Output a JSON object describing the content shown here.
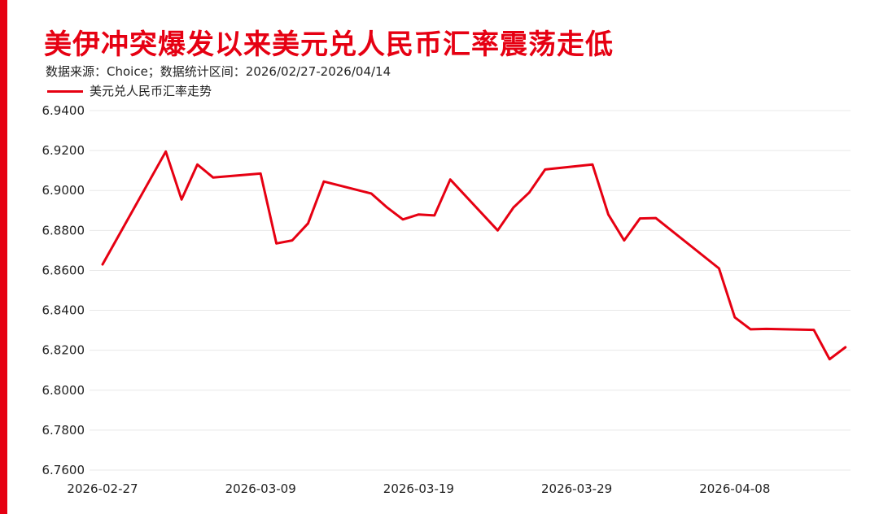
{
  "header": {
    "title": "美伊冲突爆发以来美元兑人民币汇率震荡走低",
    "subtitle": "数据来源：Choice；数据统计区间：2026/02/27-2026/04/14"
  },
  "colors": {
    "accent": "#e60012",
    "line": "#e60012",
    "grid": "#e8e8e8",
    "text": "#222222"
  },
  "chart_data": {
    "type": "line",
    "title": "美伊冲突爆发以来美元兑人民币汇率震荡走低",
    "subtitle": "数据来源：Choice；数据统计区间：2026/02/27-2026/04/14",
    "xlabel": "",
    "ylabel": "",
    "ylim": [
      6.76,
      6.94
    ],
    "y_ticks": [
      "6.9400",
      "6.9200",
      "6.9000",
      "6.8800",
      "6.8600",
      "6.8400",
      "6.8200",
      "6.8000",
      "6.7800",
      "6.7600"
    ],
    "y_tick_values": [
      6.94,
      6.92,
      6.9,
      6.88,
      6.86,
      6.84,
      6.82,
      6.8,
      6.78,
      6.76
    ],
    "x_range": [
      "2026-02-27",
      "2026-04-14"
    ],
    "x_ticks": [
      "2026-02-27",
      "2026-03-09",
      "2026-03-19",
      "2026-03-29",
      "2026-04-08"
    ],
    "grid": "horizontal",
    "legend": "top-left",
    "series": [
      {
        "name": "美元兑人民币汇率走势",
        "color": "#e60012",
        "points": [
          [
            "2026-02-27",
            6.863
          ],
          [
            "2026-03-03",
            6.9195
          ],
          [
            "2026-03-04",
            6.8955
          ],
          [
            "2026-03-05",
            6.913
          ],
          [
            "2026-03-06",
            6.9065
          ],
          [
            "2026-03-09",
            6.9085
          ],
          [
            "2026-03-10",
            6.8735
          ],
          [
            "2026-03-11",
            6.875
          ],
          [
            "2026-03-12",
            6.8835
          ],
          [
            "2026-03-13",
            6.9045
          ],
          [
            "2026-03-16",
            6.8985
          ],
          [
            "2026-03-17",
            6.8915
          ],
          [
            "2026-03-18",
            6.8855
          ],
          [
            "2026-03-19",
            6.888
          ],
          [
            "2026-03-20",
            6.8875
          ],
          [
            "2026-03-21",
            6.9055
          ],
          [
            "2026-03-24",
            6.88
          ],
          [
            "2026-03-25",
            6.8915
          ],
          [
            "2026-03-26",
            6.899
          ],
          [
            "2026-03-27",
            6.9105
          ],
          [
            "2026-03-30",
            6.913
          ],
          [
            "2026-03-31",
            6.888
          ],
          [
            "2026-04-01",
            6.875
          ],
          [
            "2026-04-02",
            6.886
          ],
          [
            "2026-04-03",
            6.8862
          ],
          [
            "2026-04-07",
            6.861
          ],
          [
            "2026-04-08",
            6.8365
          ],
          [
            "2026-04-09",
            6.8305
          ],
          [
            "2026-04-10",
            6.8307
          ],
          [
            "2026-04-13",
            6.8302
          ],
          [
            "2026-04-14",
            6.8155
          ],
          [
            "2026-04-15",
            6.8215
          ]
        ]
      }
    ]
  }
}
